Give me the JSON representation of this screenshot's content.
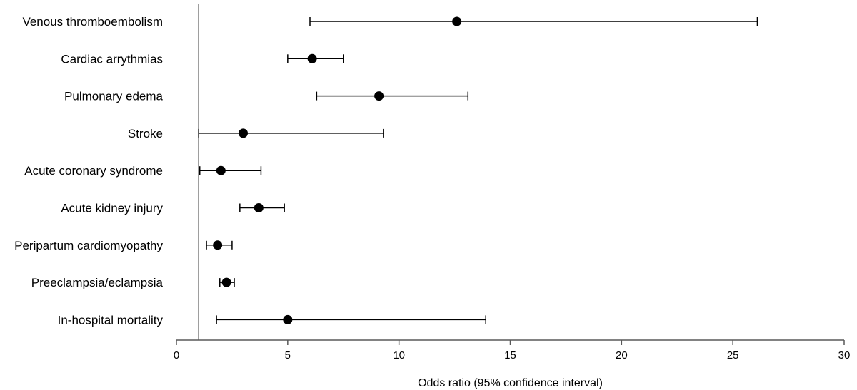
{
  "chart_data": {
    "type": "forest",
    "title": "",
    "xlabel": "Odds ratio (95% confidence interval)",
    "ylabel": "",
    "xlim": [
      0,
      30
    ],
    "xticks": [
      0,
      5,
      10,
      15,
      20,
      25,
      30
    ],
    "reference_line": 1,
    "grid": false,
    "colors": {
      "marker": "#000000",
      "axis": "#595959"
    },
    "categories": [
      "Venous thromboembolism",
      "Cardiac arrythmias",
      "Pulmonary edema",
      "Stroke",
      "Acute coronary syndrome",
      "Acute kidney injury",
      "Peripartum cardiomyopathy",
      "Preeclampsia/eclampsia",
      "In-hospital mortality"
    ],
    "series": [
      {
        "name": "Odds ratio",
        "values": [
          12.6,
          6.1,
          9.1,
          3.0,
          2.0,
          3.7,
          1.85,
          2.25,
          5.0
        ],
        "ci_low": [
          6.0,
          5.0,
          6.3,
          1.0,
          1.05,
          2.85,
          1.35,
          1.95,
          1.8
        ],
        "ci_high": [
          26.1,
          7.5,
          13.1,
          9.3,
          3.8,
          4.85,
          2.5,
          2.6,
          13.9
        ]
      }
    ]
  }
}
